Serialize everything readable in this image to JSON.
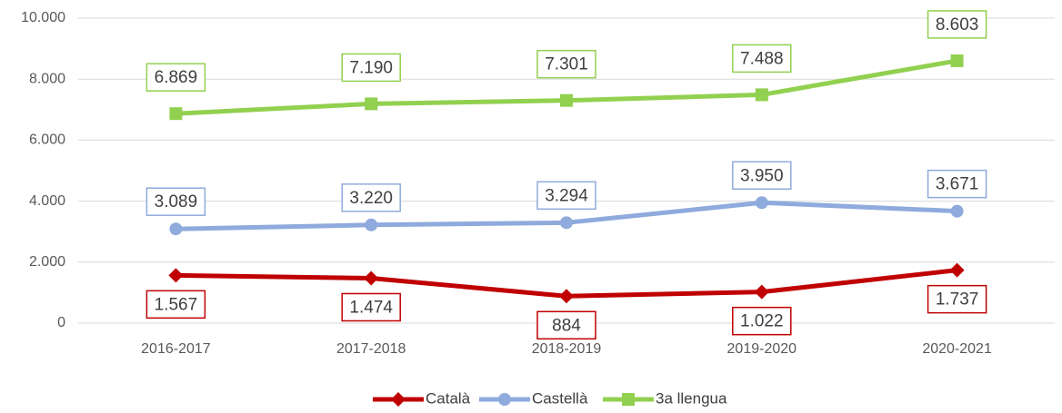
{
  "chart_data": {
    "type": "line",
    "categories": [
      "2016-2017",
      "2017-2018",
      "2018-2019",
      "2019-2020",
      "2020-2021"
    ],
    "series": [
      {
        "name": "Català",
        "color": "#c00000",
        "marker": "diamond",
        "values": [
          1567,
          1474,
          884,
          1022,
          1737
        ],
        "value_labels": [
          "1.567",
          "1.474",
          "884",
          "1.022",
          "1.737"
        ]
      },
      {
        "name": "Castellà",
        "color": "#8faadc",
        "marker": "circle",
        "values": [
          3089,
          3220,
          3294,
          3950,
          3671
        ],
        "value_labels": [
          "3.089",
          "3.220",
          "3.294",
          "3.950",
          "3.671"
        ]
      },
      {
        "name": "3a llengua",
        "color": "#92d050",
        "marker": "square",
        "values": [
          6869,
          7190,
          7301,
          7488,
          8603
        ],
        "value_labels": [
          "6.869",
          "7.190",
          "7.301",
          "7.488",
          "8.603"
        ]
      }
    ],
    "ylim": [
      0,
      10000
    ],
    "yticks": [
      0,
      {
        "value": 2000,
        "label": "2.000"
      },
      {
        "value": 4000,
        "label": "4.000"
      },
      {
        "value": 6000,
        "label": "6.000"
      },
      {
        "value": 8000,
        "label": "8.000"
      },
      {
        "value": 10000,
        "label": "10.000"
      }
    ],
    "grid": true,
    "legend": "bottom"
  }
}
